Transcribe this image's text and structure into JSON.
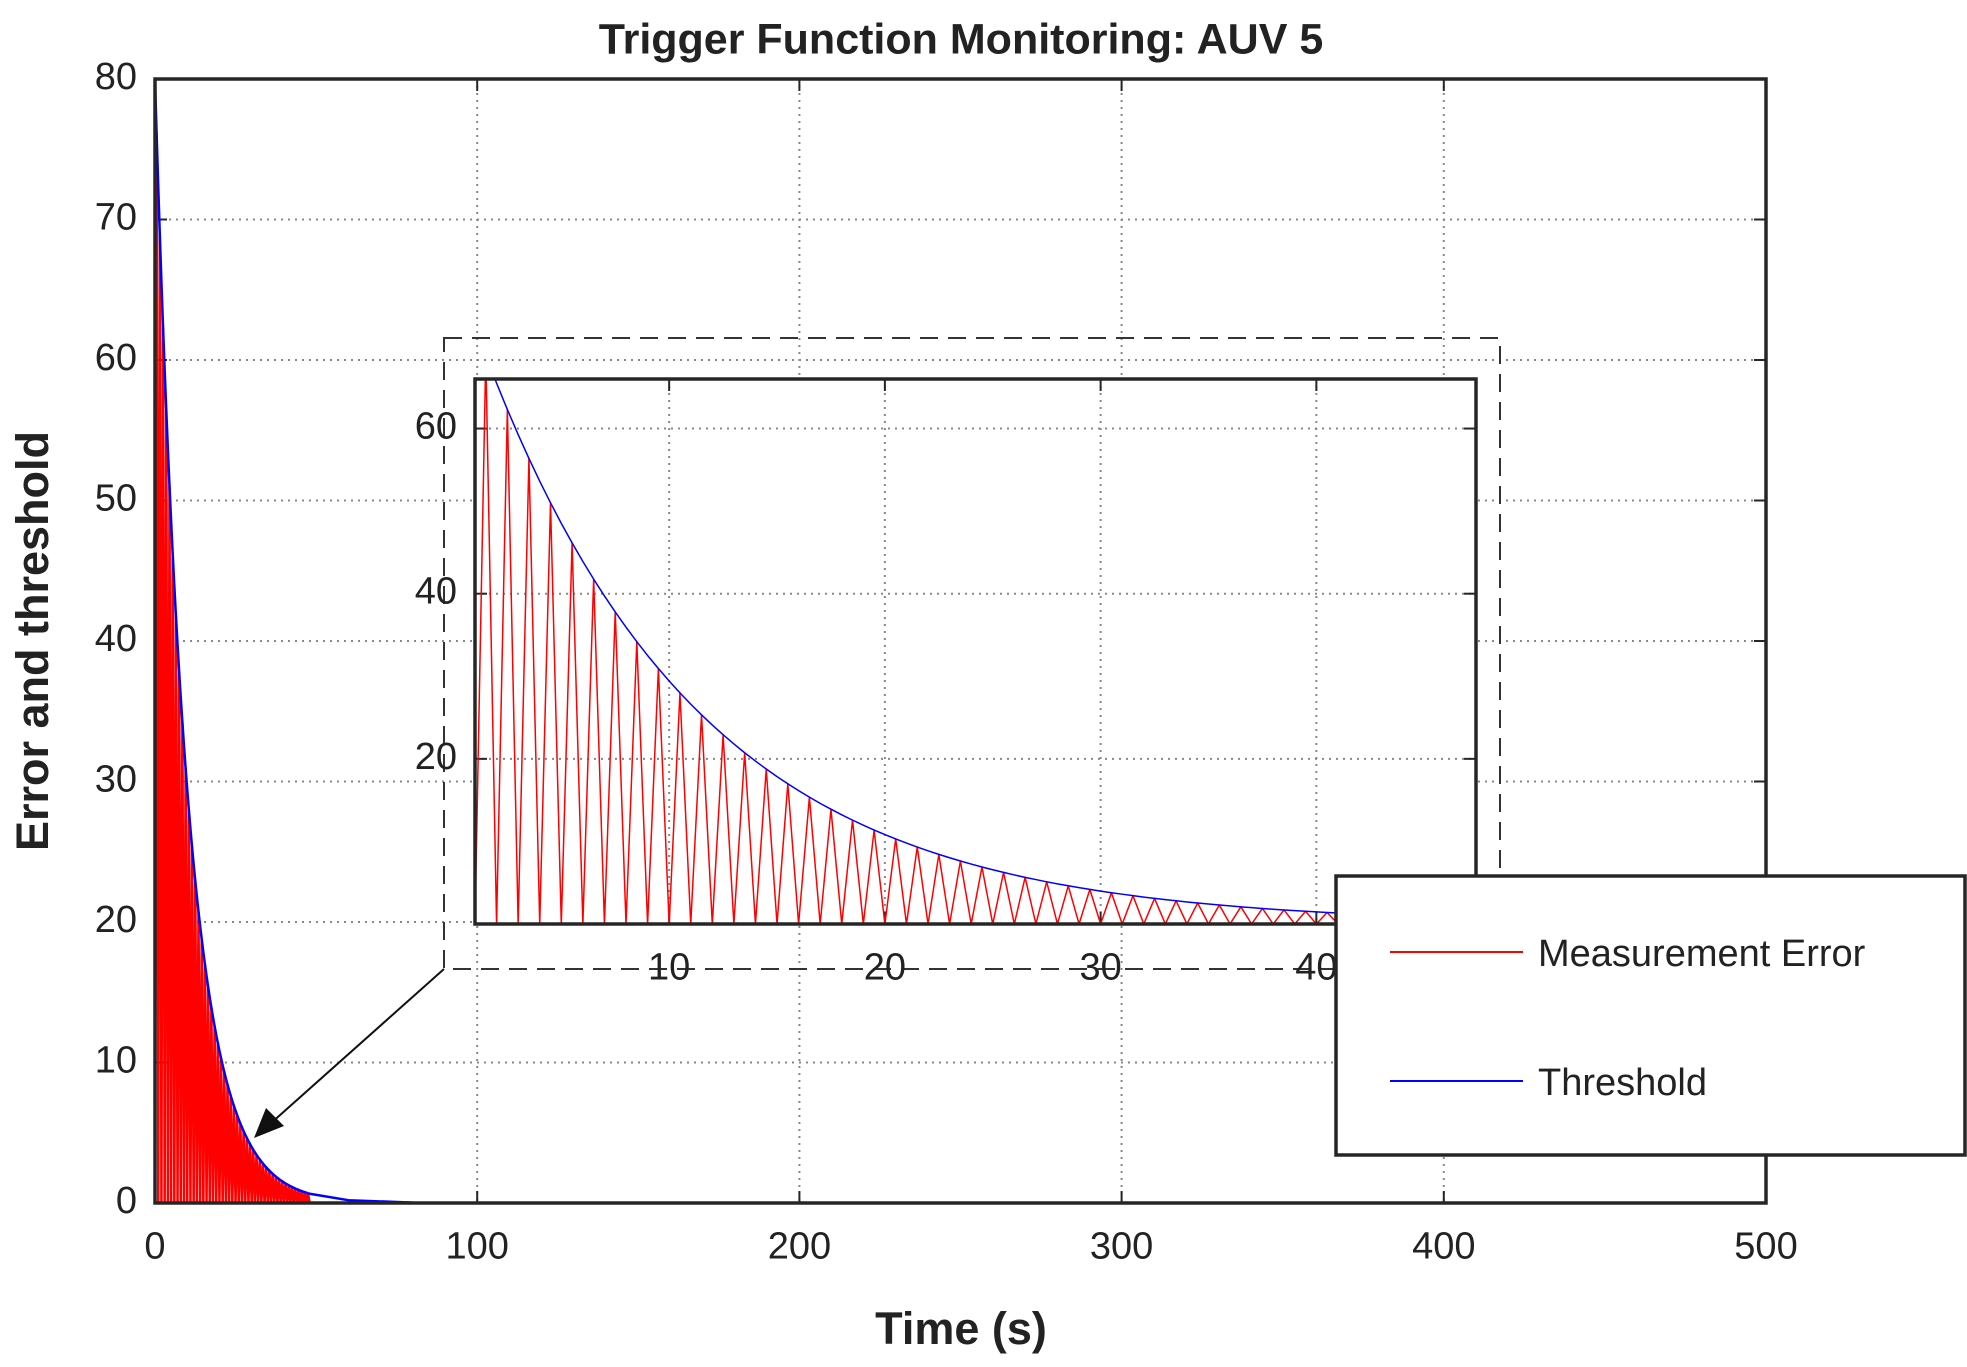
{
  "chart_data": {
    "type": "line",
    "title": "Trigger Function Monitoring: AUV 5",
    "xlabel": "Time (s)",
    "ylabel": "Error and threshold",
    "x": [
      0,
      0.5,
      1,
      1.5,
      2,
      2.5,
      3,
      3.5,
      4,
      4.5,
      5,
      5.5,
      6,
      6.5,
      7,
      7.5,
      8,
      8.5,
      9,
      9.5,
      10,
      10.5,
      11,
      11.5,
      12,
      12.5,
      13,
      13.5,
      14,
      14.5,
      15,
      15.5,
      16,
      16.5,
      17,
      17.5,
      18,
      18.5,
      19,
      19.5,
      20,
      20.5,
      21,
      21.5,
      22,
      22.5,
      23,
      23.5,
      24,
      24.5,
      25,
      25.5,
      26,
      26.5,
      27,
      27.5,
      28,
      28.5,
      29,
      29.5,
      30,
      30.5,
      31,
      31.5,
      32,
      32.5,
      33,
      33.5,
      34,
      34.5,
      35,
      35.5,
      36,
      36.5,
      37,
      37.5,
      38,
      38.5,
      39,
      39.5,
      40,
      40.5,
      41,
      41.5,
      42,
      42.5,
      43,
      43.5,
      44,
      44.5,
      45,
      45.5,
      46,
      46.5,
      47,
      47.5,
      48,
      60,
      80,
      100,
      200,
      300,
      400,
      500
    ],
    "series": [
      {
        "name": "Measurement Error",
        "color": "#ff0000",
        "values": [
          0,
          76.1,
          0,
          68.86,
          0,
          62.3,
          0,
          56.38,
          0,
          51.01,
          0,
          46.16,
          0,
          41.76,
          0,
          37.79,
          0,
          34.19,
          0,
          30.94,
          0,
          27.99,
          0,
          25.33,
          0,
          22.92,
          0,
          20.74,
          0,
          18.77,
          0,
          16.98,
          0,
          15.36,
          0,
          13.9,
          0,
          12.58,
          0,
          11.38,
          0,
          10.3,
          0,
          9.32,
          0,
          8.43,
          0,
          7.63,
          0,
          6.9,
          0,
          6.25,
          0,
          5.65,
          0,
          5.11,
          0,
          4.63,
          0,
          4.19,
          0,
          3.79,
          0,
          3.43,
          0,
          3.1,
          0,
          2.81,
          0,
          2.54,
          0,
          2.3,
          0,
          2.08,
          0,
          1.88,
          0,
          1.7,
          0,
          1.54,
          0,
          1.39,
          0,
          1.26,
          0,
          1.14,
          0,
          1.03,
          0,
          0.94,
          0,
          0.85,
          0,
          0.77,
          0,
          0.69,
          0,
          0,
          0,
          0,
          0,
          0,
          0,
          0
        ]
      },
      {
        "name": "Threshold",
        "color": "#0000ff",
        "values": [
          80,
          76.1,
          72.39,
          68.86,
          65.5,
          62.3,
          59.27,
          56.38,
          53.63,
          51.01,
          48.52,
          46.16,
          43.9,
          41.76,
          39.73,
          37.79,
          35.95,
          34.19,
          32.52,
          30.94,
          29.43,
          27.99,
          26.63,
          25.33,
          24.09,
          22.92,
          21.8,
          20.74,
          19.73,
          18.77,
          17.85,
          16.98,
          16.15,
          15.36,
          14.61,
          13.9,
          13.22,
          12.58,
          11.96,
          11.38,
          10.83,
          10.3,
          9.8,
          9.32,
          8.86,
          8.43,
          8.02,
          7.63,
          7.26,
          6.9,
          6.57,
          6.25,
          5.94,
          5.65,
          5.38,
          5.11,
          4.86,
          4.63,
          4.4,
          4.19,
          3.98,
          3.79,
          3.61,
          3.43,
          3.26,
          3.1,
          2.95,
          2.81,
          2.67,
          2.54,
          2.42,
          2.3,
          2.19,
          2.08,
          1.98,
          1.88,
          1.79,
          1.7,
          1.62,
          1.54,
          1.47,
          1.39,
          1.33,
          1.26,
          1.2,
          1.14,
          1.09,
          1.03,
          0.98,
          0.94,
          0.89,
          0.85,
          0.8,
          0.77,
          0.73,
          0.69,
          0.66,
          0.2,
          0.03,
          0,
          0,
          0,
          0,
          0
        ]
      }
    ],
    "xlim": [
      0,
      500
    ],
    "xticks": [
      0,
      100,
      200,
      300,
      400,
      500
    ],
    "ylim": [
      0,
      80
    ],
    "yticks": [
      0,
      10,
      20,
      30,
      40,
      50,
      60,
      70,
      80
    ],
    "grid": true,
    "inset": {
      "xlim": [
        1,
        47.4
      ],
      "xticks": [
        10,
        20,
        30,
        40
      ],
      "ylim": [
        0,
        66
      ],
      "yticks": [
        20,
        40,
        60
      ],
      "grid": true
    }
  }
}
